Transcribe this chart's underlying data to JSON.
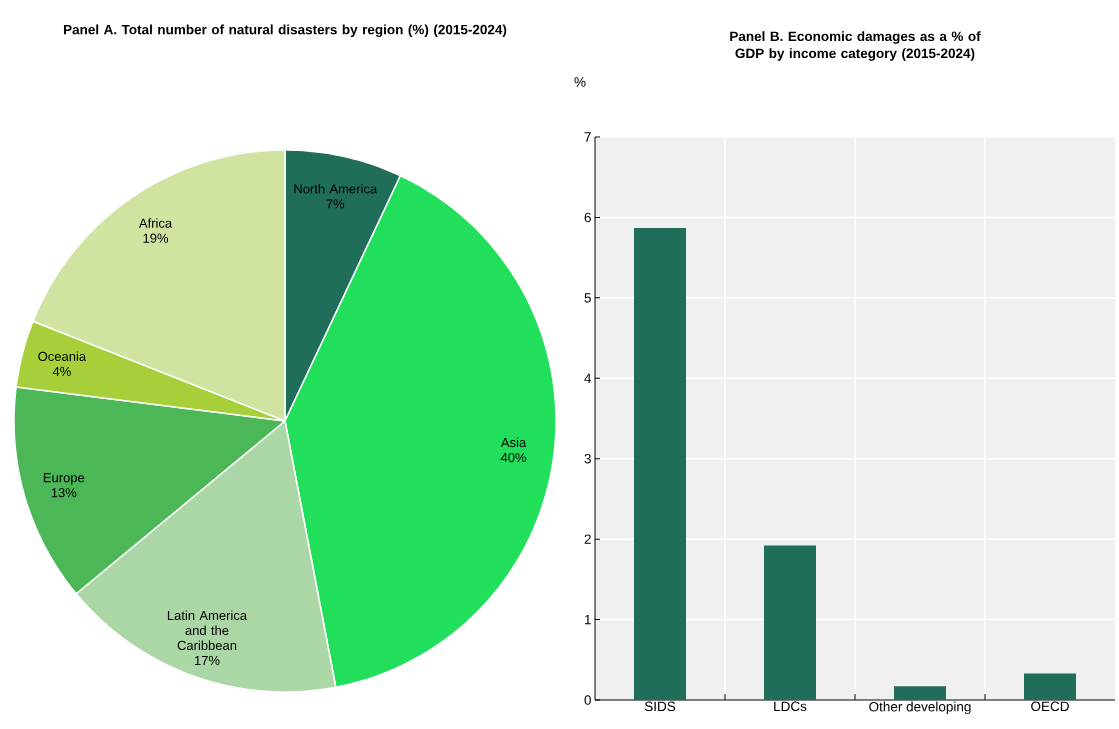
{
  "chart_data": [
    {
      "type": "pie",
      "title": "Panel A. Total number of natural disasters by region (%) (2015-2024)",
      "categories": [
        "North America",
        "Asia",
        "Latin America and the Caribbean",
        "Europe",
        "Oceania",
        "Africa"
      ],
      "values": [
        7,
        40,
        17,
        13,
        4,
        19
      ],
      "value_labels": [
        "7%",
        "40%",
        "17%",
        "13%",
        "4%",
        "19%"
      ],
      "colors": [
        "#206e5a",
        "#21de5b",
        "#abd6a6",
        "#4cb757",
        "#a6cf39",
        "#d1e3a0"
      ]
    },
    {
      "type": "bar",
      "title": "Panel B. Economic damages as a % of GDP by income category (2015-2024)",
      "ylabel": "%",
      "categories": [
        "SIDS",
        "LDCs",
        "Other developing",
        "OECD"
      ],
      "values": [
        5.87,
        1.92,
        0.17,
        0.33
      ],
      "color": "#206e5a",
      "ylim": [
        0,
        7
      ],
      "yticks": [
        0,
        1,
        2,
        3,
        4,
        5,
        6,
        7
      ],
      "grid": true
    }
  ]
}
